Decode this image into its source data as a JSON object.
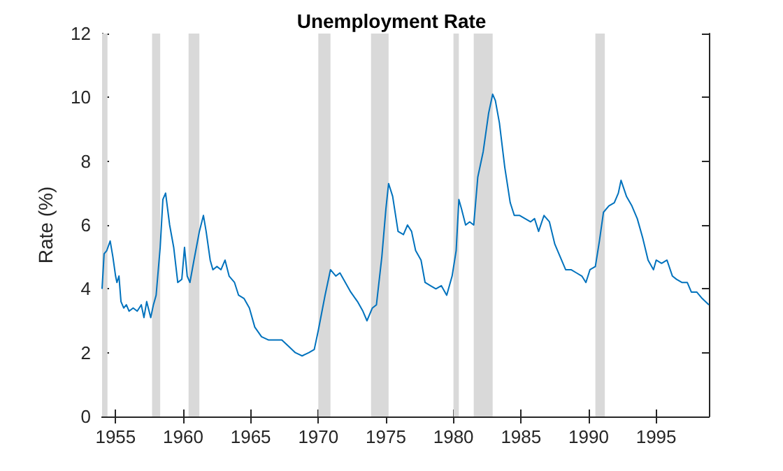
{
  "chart_data": {
    "type": "line",
    "title": "Unemployment Rate",
    "ylabel": "Rate (%)",
    "xlim": [
      1954,
      1998.9
    ],
    "xticks": [
      1955,
      1960,
      1965,
      1970,
      1975,
      1980,
      1985,
      1990,
      1995
    ],
    "ylim": [
      0,
      12
    ],
    "yticks": [
      0,
      2,
      4,
      6,
      8,
      10,
      12
    ],
    "grid": false,
    "marker": "none",
    "line_style": "solid",
    "bands": [
      {
        "axis": "x",
        "from": 1954,
        "to": 1954.4,
        "color": "#d9d9d9"
      },
      {
        "axis": "x",
        "from": 1957.7,
        "to": 1958.3,
        "color": "#d9d9d9"
      },
      {
        "axis": "x",
        "from": 1960.4,
        "to": 1961.2,
        "color": "#d9d9d9"
      },
      {
        "axis": "x",
        "from": 1970.0,
        "to": 1970.9,
        "color": "#d9d9d9"
      },
      {
        "axis": "x",
        "from": 1973.9,
        "to": 1975.2,
        "color": "#d9d9d9"
      },
      {
        "axis": "x",
        "from": 1980.0,
        "to": 1980.4,
        "color": "#d9d9d9"
      },
      {
        "axis": "x",
        "from": 1981.5,
        "to": 1982.9,
        "color": "#d9d9d9"
      },
      {
        "axis": "x",
        "from": 1990.5,
        "to": 1991.2,
        "color": "#d9d9d9"
      }
    ],
    "series": [
      {
        "color": "#0072bd",
        "x": [
          1954.0,
          1954.15,
          1954.35,
          1954.6,
          1954.8,
          1955.0,
          1955.1,
          1955.25,
          1955.4,
          1955.6,
          1955.8,
          1956.0,
          1956.3,
          1956.6,
          1956.9,
          1957.1,
          1957.3,
          1957.6,
          1957.8,
          1958.0,
          1958.3,
          1958.5,
          1958.7,
          1959.0,
          1959.3,
          1959.6,
          1959.9,
          1960.0,
          1960.1,
          1960.3,
          1960.5,
          1960.8,
          1961.2,
          1961.5,
          1961.7,
          1962.0,
          1962.2,
          1962.5,
          1962.8,
          1963.1,
          1963.4,
          1963.8,
          1964.1,
          1964.5,
          1964.9,
          1965.3,
          1965.8,
          1966.3,
          1966.8,
          1967.3,
          1967.8,
          1968.3,
          1968.8,
          1969.3,
          1969.7,
          1970.0,
          1970.5,
          1970.9,
          1971.3,
          1971.6,
          1972.0,
          1972.4,
          1972.9,
          1973.3,
          1973.6,
          1974.0,
          1974.3,
          1974.7,
          1975.0,
          1975.2,
          1975.5,
          1975.9,
          1976.3,
          1976.6,
          1976.9,
          1977.2,
          1977.6,
          1977.9,
          1978.3,
          1978.7,
          1979.1,
          1979.5,
          1979.9,
          1980.2,
          1980.4,
          1980.6,
          1980.9,
          1981.2,
          1981.5,
          1981.8,
          1982.2,
          1982.6,
          1982.9,
          1983.1,
          1983.4,
          1983.8,
          1984.2,
          1984.5,
          1984.9,
          1985.3,
          1985.7,
          1986.0,
          1986.3,
          1986.7,
          1987.1,
          1987.5,
          1987.9,
          1988.3,
          1988.7,
          1989.1,
          1989.5,
          1989.8,
          1990.1,
          1990.5,
          1990.8,
          1991.1,
          1991.5,
          1991.9,
          1992.2,
          1992.4,
          1992.8,
          1993.2,
          1993.6,
          1994.0,
          1994.4,
          1994.8,
          1995.0,
          1995.4,
          1995.8,
          1996.2,
          1996.5,
          1996.9,
          1997.3,
          1997.6,
          1998.0,
          1998.4,
          1998.9
        ],
        "values": [
          4.0,
          5.1,
          5.2,
          5.5,
          5.0,
          4.4,
          4.2,
          4.4,
          3.6,
          3.4,
          3.5,
          3.3,
          3.4,
          3.3,
          3.5,
          3.1,
          3.6,
          3.1,
          3.5,
          3.8,
          5.3,
          6.8,
          7.0,
          6.0,
          5.3,
          4.2,
          4.3,
          4.8,
          5.3,
          4.4,
          4.2,
          4.9,
          5.8,
          6.3,
          5.8,
          4.9,
          4.6,
          4.7,
          4.6,
          4.9,
          4.4,
          4.2,
          3.8,
          3.7,
          3.4,
          2.8,
          2.5,
          2.4,
          2.4,
          2.4,
          2.2,
          2.0,
          1.9,
          2.0,
          2.1,
          2.7,
          3.8,
          4.6,
          4.4,
          4.5,
          4.2,
          3.9,
          3.6,
          3.3,
          3.0,
          3.4,
          3.5,
          5.0,
          6.5,
          7.3,
          6.9,
          5.8,
          5.7,
          6.0,
          5.8,
          5.2,
          4.9,
          4.2,
          4.1,
          4.0,
          4.1,
          3.8,
          4.4,
          5.2,
          6.8,
          6.5,
          6.0,
          6.1,
          6.0,
          7.5,
          8.3,
          9.5,
          10.1,
          9.9,
          9.2,
          7.8,
          6.7,
          6.3,
          6.3,
          6.2,
          6.1,
          6.2,
          5.8,
          6.3,
          6.1,
          5.4,
          5.0,
          4.6,
          4.6,
          4.5,
          4.4,
          4.2,
          4.6,
          4.7,
          5.5,
          6.4,
          6.6,
          6.7,
          7.0,
          7.4,
          6.9,
          6.6,
          6.2,
          5.6,
          4.9,
          4.6,
          4.9,
          4.8,
          4.9,
          4.4,
          4.3,
          4.2,
          4.2,
          3.9,
          3.9,
          3.7,
          3.5
        ]
      }
    ]
  }
}
